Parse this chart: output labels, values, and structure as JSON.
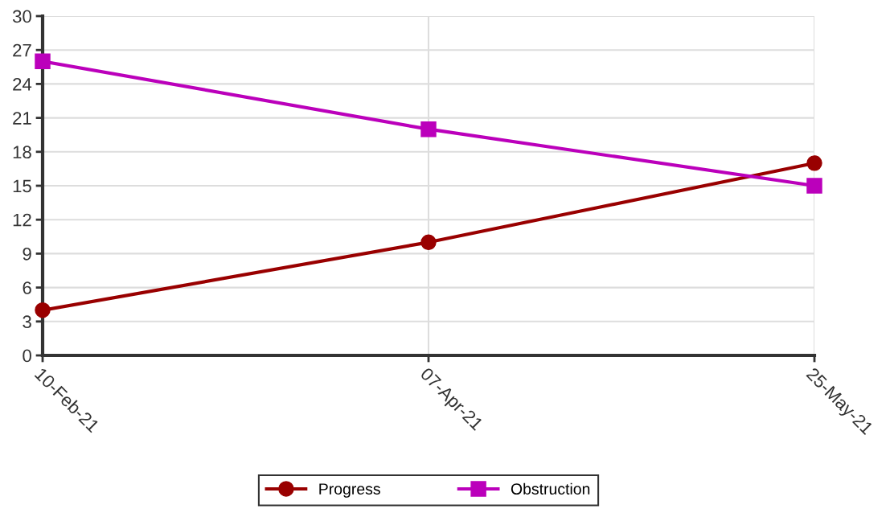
{
  "chart_data": {
    "type": "line",
    "categories": [
      "10-Feb-21",
      "07-Apr-21",
      "25-May-21"
    ],
    "series": [
      {
        "name": "Progress",
        "color": "#990000",
        "values": [
          4,
          10,
          17
        ],
        "marker": "circle"
      },
      {
        "name": "Obstruction",
        "color": "#bb00bb",
        "values": [
          26,
          20,
          15
        ],
        "marker": "square"
      }
    ],
    "ylim": [
      0,
      30
    ],
    "yticks": [
      0,
      3,
      6,
      9,
      12,
      15,
      18,
      21,
      24,
      27,
      30
    ],
    "grid": true,
    "legend": "bottom",
    "line_style": "solid"
  }
}
